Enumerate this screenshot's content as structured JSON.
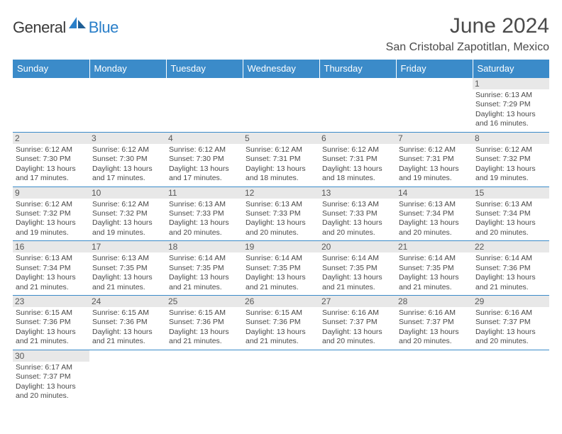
{
  "logo": {
    "part1": "General",
    "part2": "Blue"
  },
  "title": "June 2024",
  "location": "San Cristobal Zapotitlan, Mexico",
  "colors": {
    "header_bg": "#3b8bc9",
    "header_text": "#ffffff",
    "daynum_bg": "#e8e8e8",
    "text": "#494949",
    "logo_dark": "#3a3a3a",
    "logo_blue": "#2a7fc9",
    "border": "#3b8bc9"
  },
  "weekdays": [
    "Sunday",
    "Monday",
    "Tuesday",
    "Wednesday",
    "Thursday",
    "Friday",
    "Saturday"
  ],
  "days": {
    "1": {
      "sunrise": "6:13 AM",
      "sunset": "7:29 PM",
      "daylight": "13 hours and 16 minutes."
    },
    "2": {
      "sunrise": "6:12 AM",
      "sunset": "7:30 PM",
      "daylight": "13 hours and 17 minutes."
    },
    "3": {
      "sunrise": "6:12 AM",
      "sunset": "7:30 PM",
      "daylight": "13 hours and 17 minutes."
    },
    "4": {
      "sunrise": "6:12 AM",
      "sunset": "7:30 PM",
      "daylight": "13 hours and 17 minutes."
    },
    "5": {
      "sunrise": "6:12 AM",
      "sunset": "7:31 PM",
      "daylight": "13 hours and 18 minutes."
    },
    "6": {
      "sunrise": "6:12 AM",
      "sunset": "7:31 PM",
      "daylight": "13 hours and 18 minutes."
    },
    "7": {
      "sunrise": "6:12 AM",
      "sunset": "7:31 PM",
      "daylight": "13 hours and 19 minutes."
    },
    "8": {
      "sunrise": "6:12 AM",
      "sunset": "7:32 PM",
      "daylight": "13 hours and 19 minutes."
    },
    "9": {
      "sunrise": "6:12 AM",
      "sunset": "7:32 PM",
      "daylight": "13 hours and 19 minutes."
    },
    "10": {
      "sunrise": "6:12 AM",
      "sunset": "7:32 PM",
      "daylight": "13 hours and 19 minutes."
    },
    "11": {
      "sunrise": "6:13 AM",
      "sunset": "7:33 PM",
      "daylight": "13 hours and 20 minutes."
    },
    "12": {
      "sunrise": "6:13 AM",
      "sunset": "7:33 PM",
      "daylight": "13 hours and 20 minutes."
    },
    "13": {
      "sunrise": "6:13 AM",
      "sunset": "7:33 PM",
      "daylight": "13 hours and 20 minutes."
    },
    "14": {
      "sunrise": "6:13 AM",
      "sunset": "7:34 PM",
      "daylight": "13 hours and 20 minutes."
    },
    "15": {
      "sunrise": "6:13 AM",
      "sunset": "7:34 PM",
      "daylight": "13 hours and 20 minutes."
    },
    "16": {
      "sunrise": "6:13 AM",
      "sunset": "7:34 PM",
      "daylight": "13 hours and 21 minutes."
    },
    "17": {
      "sunrise": "6:13 AM",
      "sunset": "7:35 PM",
      "daylight": "13 hours and 21 minutes."
    },
    "18": {
      "sunrise": "6:14 AM",
      "sunset": "7:35 PM",
      "daylight": "13 hours and 21 minutes."
    },
    "19": {
      "sunrise": "6:14 AM",
      "sunset": "7:35 PM",
      "daylight": "13 hours and 21 minutes."
    },
    "20": {
      "sunrise": "6:14 AM",
      "sunset": "7:35 PM",
      "daylight": "13 hours and 21 minutes."
    },
    "21": {
      "sunrise": "6:14 AM",
      "sunset": "7:35 PM",
      "daylight": "13 hours and 21 minutes."
    },
    "22": {
      "sunrise": "6:14 AM",
      "sunset": "7:36 PM",
      "daylight": "13 hours and 21 minutes."
    },
    "23": {
      "sunrise": "6:15 AM",
      "sunset": "7:36 PM",
      "daylight": "13 hours and 21 minutes."
    },
    "24": {
      "sunrise": "6:15 AM",
      "sunset": "7:36 PM",
      "daylight": "13 hours and 21 minutes."
    },
    "25": {
      "sunrise": "6:15 AM",
      "sunset": "7:36 PM",
      "daylight": "13 hours and 21 minutes."
    },
    "26": {
      "sunrise": "6:15 AM",
      "sunset": "7:36 PM",
      "daylight": "13 hours and 21 minutes."
    },
    "27": {
      "sunrise": "6:16 AM",
      "sunset": "7:37 PM",
      "daylight": "13 hours and 20 minutes."
    },
    "28": {
      "sunrise": "6:16 AM",
      "sunset": "7:37 PM",
      "daylight": "13 hours and 20 minutes."
    },
    "29": {
      "sunrise": "6:16 AM",
      "sunset": "7:37 PM",
      "daylight": "13 hours and 20 minutes."
    },
    "30": {
      "sunrise": "6:17 AM",
      "sunset": "7:37 PM",
      "daylight": "13 hours and 20 minutes."
    }
  },
  "layout": {
    "first_day_index": 6,
    "num_days": 30,
    "labels": {
      "sunrise": "Sunrise: ",
      "sunset": "Sunset: ",
      "daylight": "Daylight: "
    }
  }
}
